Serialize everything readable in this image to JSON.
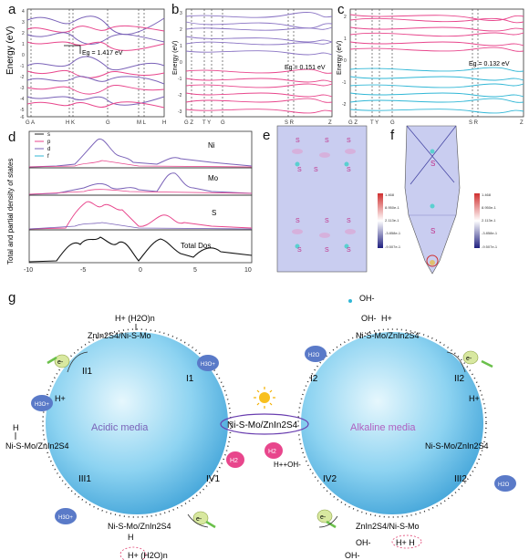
{
  "panels": {
    "a": {
      "letter": "a",
      "gap": "Eg = 1.417 eV",
      "ylabel": "Energy (eV)",
      "xticks": [
        "G A",
        "H K",
        "G",
        "M L",
        "H"
      ],
      "yticks": [
        "4",
        "3",
        "2",
        "1",
        "0",
        "-1",
        "-2",
        "-3",
        "-4",
        "-5",
        "-6"
      ]
    },
    "b": {
      "letter": "b",
      "gap": "Eg = 0.151 eV",
      "ylabel": "Energy (eV)",
      "xticks": [
        "G Z",
        "T Y",
        "G",
        "S R",
        "Z"
      ],
      "yticks": [
        "3",
        "2",
        "1",
        "0",
        "-1",
        "-2",
        "-3"
      ]
    },
    "c": {
      "letter": "c",
      "gap": "Eg = 0.132 eV",
      "ylabel": "Energy (eV)",
      "xticks": [
        "G Z",
        "T Y",
        "G",
        "S R",
        "Z"
      ],
      "yticks": [
        "2",
        "1",
        "0",
        "-1",
        "-2"
      ]
    },
    "d": {
      "letter": "d",
      "ylabel": "Total and partial density of states",
      "legend": [
        "s",
        "p",
        "d",
        "f"
      ],
      "labels": [
        "Ni",
        "Mo",
        "S",
        "Total Dos"
      ],
      "xticks": [
        "-10",
        "-5",
        "0",
        "5",
        "10"
      ]
    },
    "e": {
      "letter": "e",
      "atom": "S",
      "scale": [
        "1.468",
        "8.950e-1",
        "2.113e-1",
        "-3.858e-1",
        "-9.507e-1"
      ]
    },
    "f": {
      "letter": "f",
      "atom": "S",
      "scale": [
        "1.468",
        "8.950e-1",
        "2.113e-1",
        "-3.858e-1",
        "-9.507e-1"
      ]
    },
    "g": {
      "letter": "g"
    }
  },
  "colors": {
    "pink": "#e8468c",
    "purple": "#7a62b8",
    "cyan": "#31b7d6",
    "blue_sphere": "#62b8e6",
    "dark": "#222222"
  },
  "mechanism": {
    "center": "Ni-S-Mo/ZnIn2S4",
    "left_label": "Acidic media",
    "right_label": "Alkaline media",
    "left": {
      "top": "ZnIn2S4/Ni-S-Mo",
      "top_h": "H+ (H2O)n",
      "left": "Ni-S-Mo/ZnIn2S4",
      "left_h": "H",
      "left_hplus": "H+",
      "bottom": "Ni-S-Mo/ZnIn2S4",
      "bottom_h": "H",
      "bottom_hplus": "H+ (H2O)n",
      "steps": [
        "I1",
        "II1",
        "III1",
        "IV1"
      ],
      "h3o_top": "H3O+",
      "h3o_left_top": "H3O+",
      "h3o_left_bot": "H3O+",
      "e_top": "e-",
      "e_bot": "e-",
      "h2": "H2"
    },
    "right": {
      "top": "Ni-S-Mo/ZnIn2S4",
      "top_oh": "OH-",
      "top_oh2": "OH-",
      "top_h": "H+",
      "right": "Ni-S-Mo/ZnIn2S4",
      "right_h": "H+",
      "bottom": "ZnIn2S4/Ni-S-Mo",
      "bottom_oh": "OH-",
      "bottom_hh": "H+ H",
      "bottom_oh2": "OH-",
      "steps": [
        "I2",
        "II2",
        "III2",
        "IV2"
      ],
      "h2o_top": "H2O",
      "h2o_right": "H2O",
      "e_top": "e-",
      "e_bot": "e-",
      "h2": "H2",
      "h2oh": "H++OH-"
    }
  }
}
